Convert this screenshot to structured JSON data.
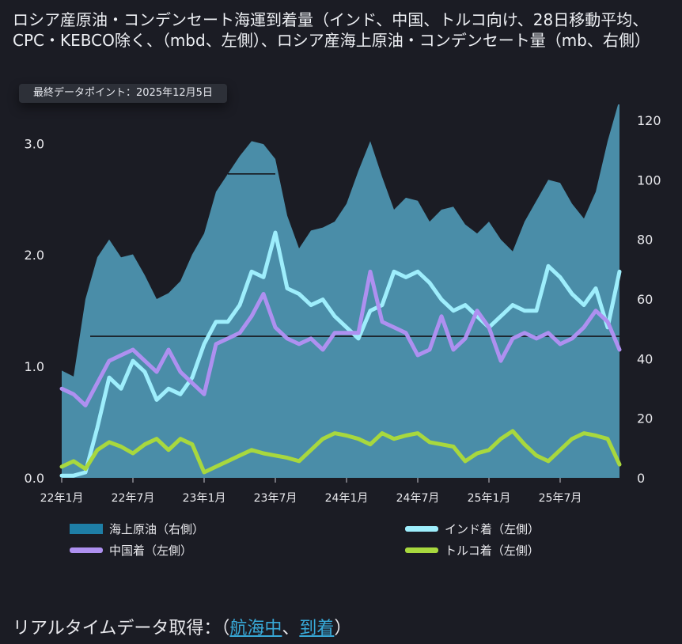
{
  "title": "ロシア産原油・コンデンセート海運到着量（インド、中国、トルコ向け、28日移動平均、CPC・KEBCO除く、（mbd、左側）、ロシア産海上原油・コンデンセート量（mb、右側）",
  "badge": "最終データポイント：2025年12月5日",
  "footer": {
    "prefix": "リアルタイムデータ取得：（",
    "link1": "航海中",
    "sep": "、",
    "link2": "到着",
    "suffix": "）"
  },
  "colors": {
    "background": "#1b1c24",
    "area": "#4a8da8",
    "area_legend": "#1e7ea6",
    "india": "#9eeefc",
    "china": "#ae90f0",
    "turkey": "#a8d83e",
    "hline": "#16171c"
  },
  "chart_data": {
    "type": "line",
    "x_ticks": [
      "22年1月",
      "22年7月",
      "23年1月",
      "23年7月",
      "24年1月",
      "24年7月",
      "25年1月",
      "25年7月"
    ],
    "x_tick_values": [
      "2022-01",
      "2022-07",
      "2023-01",
      "2023-07",
      "2024-01",
      "2024-07",
      "2025-01",
      "2025-07"
    ],
    "x_range": [
      "2022-01",
      "2025-12"
    ],
    "y_left": {
      "ticks": [
        "0.0",
        "1.0",
        "2.0",
        "3.0"
      ],
      "ylim": [
        0,
        3.35
      ]
    },
    "y_right": {
      "ticks": [
        "0",
        "20",
        "40",
        "60",
        "80",
        "100",
        "120"
      ],
      "ylim": [
        0,
        120
      ]
    },
    "reference_lines": [
      {
        "axis": "right",
        "value": 47.5
      },
      {
        "axis": "right",
        "value": 102,
        "x_from": "2023-03",
        "x_to": "2023-07"
      }
    ],
    "series": [
      {
        "name": "海上原油（右側）",
        "type": "area",
        "axis": "right",
        "color": "#4a8da8",
        "x": [
          "2022-01",
          "2022-02",
          "2022-03",
          "2022-04",
          "2022-05",
          "2022-06",
          "2022-07",
          "2022-08",
          "2022-09",
          "2022-10",
          "2022-11",
          "2022-12",
          "2023-01",
          "2023-02",
          "2023-03",
          "2023-04",
          "2023-05",
          "2023-06",
          "2023-07",
          "2023-08",
          "2023-09",
          "2023-10",
          "2023-11",
          "2023-12",
          "2024-01",
          "2024-02",
          "2024-03",
          "2024-04",
          "2024-05",
          "2024-06",
          "2024-07",
          "2024-08",
          "2024-09",
          "2024-10",
          "2024-11",
          "2024-12",
          "2025-01",
          "2025-02",
          "2025-03",
          "2025-04",
          "2025-05",
          "2025-06",
          "2025-07",
          "2025-08",
          "2025-09",
          "2025-10",
          "2025-11",
          "2025-12"
        ],
        "values": [
          36,
          34,
          60,
          74,
          80,
          74,
          75,
          68,
          60,
          62,
          66,
          75,
          82,
          96,
          102,
          108,
          113,
          112,
          107,
          88,
          77,
          83,
          84,
          86,
          92,
          103,
          113,
          101,
          90,
          94,
          93,
          86,
          90,
          91,
          85,
          82,
          86,
          80,
          76,
          86,
          93,
          100,
          99,
          92,
          87,
          96,
          113,
          127
        ]
      },
      {
        "name": "インド着（左側）",
        "type": "line",
        "axis": "left",
        "color": "#9eeefc",
        "x": [
          "2022-01",
          "2022-02",
          "2022-03",
          "2022-04",
          "2022-05",
          "2022-06",
          "2022-07",
          "2022-08",
          "2022-09",
          "2022-10",
          "2022-11",
          "2022-12",
          "2023-01",
          "2023-02",
          "2023-03",
          "2023-04",
          "2023-05",
          "2023-06",
          "2023-07",
          "2023-08",
          "2023-09",
          "2023-10",
          "2023-11",
          "2023-12",
          "2024-01",
          "2024-02",
          "2024-03",
          "2024-04",
          "2024-05",
          "2024-06",
          "2024-07",
          "2024-08",
          "2024-09",
          "2024-10",
          "2024-11",
          "2024-12",
          "2025-01",
          "2025-02",
          "2025-03",
          "2025-04",
          "2025-05",
          "2025-06",
          "2025-07",
          "2025-08",
          "2025-09",
          "2025-10",
          "2025-11",
          "2025-12"
        ],
        "values": [
          0.02,
          0.02,
          0.05,
          0.45,
          0.9,
          0.8,
          1.05,
          0.95,
          0.7,
          0.8,
          0.75,
          0.9,
          1.2,
          1.4,
          1.4,
          1.55,
          1.85,
          1.8,
          2.2,
          1.7,
          1.65,
          1.55,
          1.6,
          1.45,
          1.35,
          1.25,
          1.5,
          1.55,
          1.85,
          1.8,
          1.85,
          1.75,
          1.6,
          1.5,
          1.55,
          1.45,
          1.35,
          1.45,
          1.55,
          1.5,
          1.5,
          1.9,
          1.8,
          1.65,
          1.55,
          1.7,
          1.35,
          1.85
        ]
      },
      {
        "name": "中国着（左側）",
        "type": "line",
        "axis": "left",
        "color": "#ae90f0",
        "x": [
          "2022-01",
          "2022-02",
          "2022-03",
          "2022-04",
          "2022-05",
          "2022-06",
          "2022-07",
          "2022-08",
          "2022-09",
          "2022-10",
          "2022-11",
          "2022-12",
          "2023-01",
          "2023-02",
          "2023-03",
          "2023-04",
          "2023-05",
          "2023-06",
          "2023-07",
          "2023-08",
          "2023-09",
          "2023-10",
          "2023-11",
          "2023-12",
          "2024-01",
          "2024-02",
          "2024-03",
          "2024-04",
          "2024-05",
          "2024-06",
          "2024-07",
          "2024-08",
          "2024-09",
          "2024-10",
          "2024-11",
          "2024-12",
          "2025-01",
          "2025-02",
          "2025-03",
          "2025-04",
          "2025-05",
          "2025-06",
          "2025-07",
          "2025-08",
          "2025-09",
          "2025-10",
          "2025-11",
          "2025-12"
        ],
        "values": [
          0.8,
          0.75,
          0.65,
          0.85,
          1.05,
          1.1,
          1.15,
          1.05,
          0.95,
          1.15,
          0.95,
          0.85,
          0.75,
          1.2,
          1.25,
          1.3,
          1.45,
          1.65,
          1.35,
          1.25,
          1.2,
          1.25,
          1.15,
          1.3,
          1.3,
          1.3,
          1.85,
          1.4,
          1.35,
          1.3,
          1.1,
          1.15,
          1.45,
          1.15,
          1.25,
          1.5,
          1.35,
          1.05,
          1.25,
          1.3,
          1.25,
          1.3,
          1.2,
          1.25,
          1.35,
          1.5,
          1.4,
          1.15
        ]
      },
      {
        "name": "トルコ着（左側）",
        "type": "line",
        "axis": "left",
        "color": "#a8d83e",
        "x": [
          "2022-01",
          "2022-02",
          "2022-03",
          "2022-04",
          "2022-05",
          "2022-06",
          "2022-07",
          "2022-08",
          "2022-09",
          "2022-10",
          "2022-11",
          "2022-12",
          "2023-01",
          "2023-02",
          "2023-03",
          "2023-04",
          "2023-05",
          "2023-06",
          "2023-07",
          "2023-08",
          "2023-09",
          "2023-10",
          "2023-11",
          "2023-12",
          "2024-01",
          "2024-02",
          "2024-03",
          "2024-04",
          "2024-05",
          "2024-06",
          "2024-07",
          "2024-08",
          "2024-09",
          "2024-10",
          "2024-11",
          "2024-12",
          "2025-01",
          "2025-02",
          "2025-03",
          "2025-04",
          "2025-05",
          "2025-06",
          "2025-07",
          "2025-08",
          "2025-09",
          "2025-10",
          "2025-11",
          "2025-12"
        ],
        "values": [
          0.1,
          0.15,
          0.08,
          0.25,
          0.32,
          0.28,
          0.22,
          0.3,
          0.35,
          0.25,
          0.35,
          0.3,
          0.05,
          0.1,
          0.15,
          0.2,
          0.25,
          0.22,
          0.2,
          0.18,
          0.15,
          0.25,
          0.35,
          0.4,
          0.38,
          0.35,
          0.3,
          0.4,
          0.35,
          0.38,
          0.4,
          0.32,
          0.3,
          0.28,
          0.15,
          0.22,
          0.25,
          0.35,
          0.42,
          0.3,
          0.2,
          0.15,
          0.25,
          0.35,
          0.4,
          0.38,
          0.35,
          0.12
        ]
      }
    ]
  },
  "legend": [
    {
      "label": "海上原油（右側）",
      "color": "#1e7ea6"
    },
    {
      "label": "インド着（左側）",
      "color": "#9eeefc"
    },
    {
      "label": "中国着（左側）",
      "color": "#ae90f0"
    },
    {
      "label": "トルコ着（左側）",
      "color": "#a8d83e"
    }
  ]
}
